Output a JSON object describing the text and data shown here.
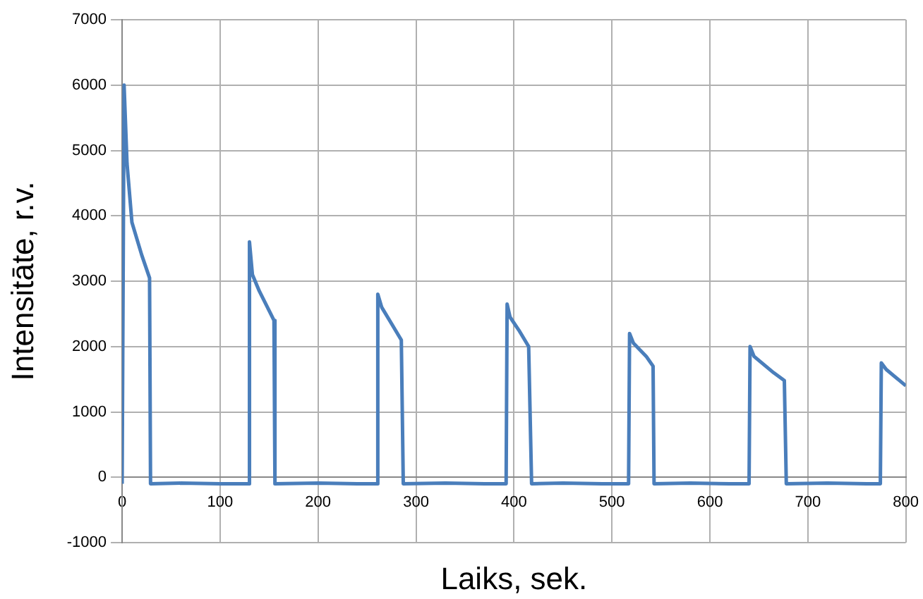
{
  "chart_data": {
    "type": "line",
    "xlabel": "Laiks, sek.",
    "ylabel": "Intensitāte, r.v.",
    "xlim": [
      0,
      800
    ],
    "xticks": [
      0,
      100,
      200,
      300,
      400,
      500,
      600,
      700,
      800
    ],
    "ylim": [
      -1000,
      7000
    ],
    "yticks": [
      -1000,
      0,
      1000,
      2000,
      3000,
      4000,
      5000,
      6000,
      7000
    ],
    "grid": true,
    "legend": false,
    "marker": "none",
    "line_style": "solid",
    "series": [
      {
        "color": "#4a7ebb",
        "x": [
          0,
          2,
          5,
          10,
          20,
          28,
          29,
          60,
          100,
          129,
          130,
          133,
          140,
          150,
          155,
          156,
          200,
          240,
          260,
          261,
          265,
          275,
          285,
          287,
          330,
          370,
          392,
          393,
          396,
          405,
          415,
          418,
          450,
          490,
          517,
          518,
          522,
          535,
          542,
          543,
          580,
          620,
          640,
          641,
          645,
          665,
          676,
          678,
          720,
          760,
          774,
          775,
          780,
          800
        ],
        "values": [
          -100,
          6000,
          4800,
          3900,
          3400,
          3050,
          -100,
          -90,
          -100,
          -100,
          3600,
          3100,
          2850,
          2550,
          2400,
          -100,
          -90,
          -100,
          -100,
          2800,
          2600,
          2350,
          2100,
          -100,
          -90,
          -100,
          -100,
          2650,
          2450,
          2250,
          2000,
          -100,
          -90,
          -100,
          -100,
          2200,
          2050,
          1850,
          1700,
          -100,
          -90,
          -100,
          -100,
          2000,
          1850,
          1600,
          1480,
          -100,
          -90,
          -100,
          -100,
          1750,
          1650,
          1400
        ]
      }
    ]
  }
}
